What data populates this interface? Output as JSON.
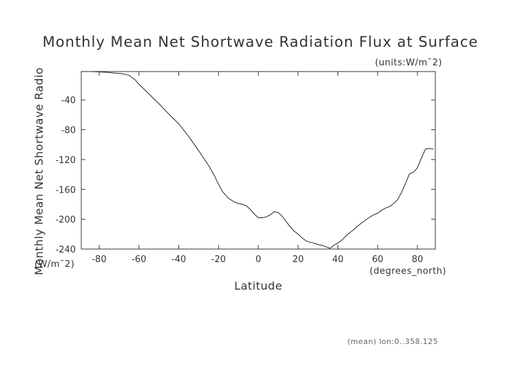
{
  "chart_data": {
    "type": "line",
    "title": "Monthly Mean Net Shortwave Radiation Flux at Surface",
    "units_label": "(units:W/m¯2)",
    "ylabel": "Monthly Mean Net Shortwave Radio",
    "ylabel_units": "(W/m¯2)",
    "xlabel": "Latitude",
    "xlabel_units": "(degrees_north)",
    "footer": "(mean) lon:0..358.125",
    "xlim": [
      -89,
      89
    ],
    "ylim": [
      -240,
      -2
    ],
    "xticks": [
      -80,
      -60,
      -40,
      -20,
      0,
      20,
      40,
      60,
      80
    ],
    "yticks": [
      -40,
      -80,
      -120,
      -160,
      -200,
      -240
    ],
    "series": [
      {
        "x": [
          -89,
          -84,
          -80,
          -76,
          -72,
          -68,
          -65,
          -62,
          -60,
          -55,
          -50,
          -45,
          -40,
          -35,
          -30,
          -25,
          -22,
          -20,
          -18,
          -15,
          -12,
          -10,
          -8,
          -6,
          -4,
          -2,
          0,
          2,
          4,
          6,
          8,
          10,
          12,
          14,
          16,
          18,
          20,
          22,
          24,
          26,
          28,
          30,
          32,
          34,
          36,
          38,
          40,
          42,
          45,
          48,
          50,
          52,
          55,
          58,
          60,
          62,
          64,
          66,
          68,
          70,
          72,
          74,
          76,
          78,
          80,
          82,
          84,
          86,
          88
        ],
        "y": [
          -2,
          -2,
          -2.5,
          -3,
          -4,
          -5,
          -7,
          -13,
          -19,
          -32,
          -45,
          -59,
          -72,
          -89,
          -108,
          -128,
          -142,
          -153,
          -163,
          -172,
          -177,
          -179,
          -180,
          -182,
          -187,
          -193,
          -198,
          -198,
          -197,
          -194,
          -190,
          -191,
          -196,
          -203,
          -210,
          -216,
          -220,
          -225,
          -229,
          -231,
          -232,
          -234,
          -235,
          -237,
          -239,
          -235,
          -232,
          -228,
          -220,
          -214,
          -209,
          -205,
          -199,
          -194,
          -192,
          -188,
          -185,
          -183,
          -179,
          -174,
          -164,
          -152,
          -139,
          -137,
          -131,
          -118,
          -106,
          -105,
          -106
        ]
      }
    ]
  }
}
